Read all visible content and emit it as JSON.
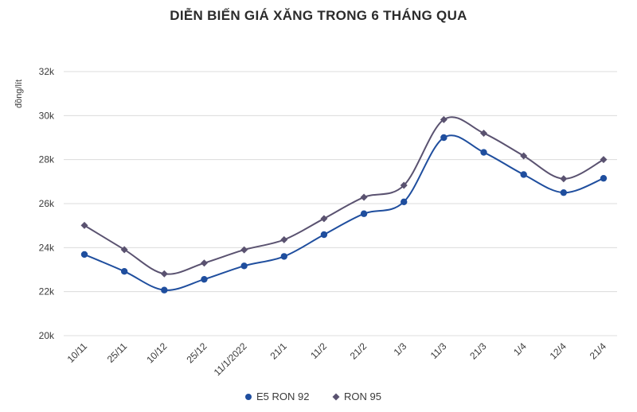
{
  "chart_data": {
    "type": "line",
    "title": "DIỄN BIẾN GIÁ XĂNG TRONG 6 THÁNG QUA",
    "ylabel": "đồng/lít",
    "xlabel": "",
    "categories": [
      "10/11",
      "25/11",
      "10/12",
      "25/12",
      "11/1/2022",
      "21/1",
      "11/2",
      "21/2",
      "1/3",
      "11/3",
      "21/3",
      "1/4",
      "12/4",
      "21/4"
    ],
    "ylim": [
      20000,
      32000
    ],
    "yticks": [
      20000,
      22000,
      24000,
      26000,
      28000,
      30000,
      32000
    ],
    "ytick_labels": [
      "20k",
      "22k",
      "24k",
      "26k",
      "28k",
      "30k",
      "32k"
    ],
    "grid": true,
    "legend_position": "bottom",
    "smooth": true,
    "series": [
      {
        "name": "E5 RON 92",
        "color": "#1f4e9e",
        "marker": "circle",
        "values": [
          23690,
          22920,
          22070,
          22560,
          23170,
          23600,
          24590,
          25540,
          26080,
          29000,
          28330,
          27320,
          26500,
          27150
        ]
      },
      {
        "name": "RON 95",
        "color": "#5a5270",
        "marker": "diamond",
        "values": [
          25010,
          23910,
          22810,
          23300,
          23900,
          24360,
          25320,
          26290,
          26830,
          29820,
          29200,
          28170,
          27130,
          28000
        ]
      }
    ]
  }
}
